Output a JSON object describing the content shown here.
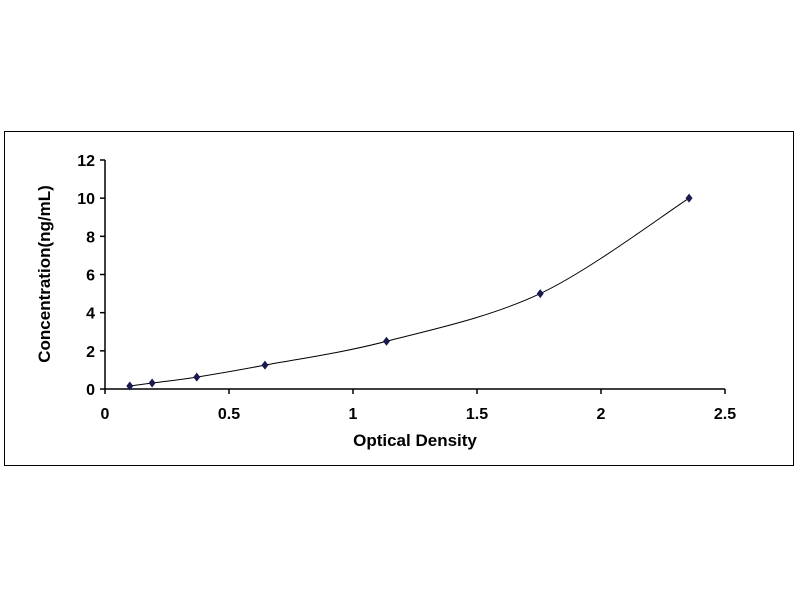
{
  "chart_data": {
    "type": "scatter",
    "title": "",
    "xlabel": "Optical Density",
    "ylabel": "Concentration(ng/mL)",
    "xlim": [
      0,
      2.5
    ],
    "ylim": [
      0,
      12
    ],
    "xticks": [
      "0",
      "0.5",
      "1",
      "1.5",
      "2",
      "2.5"
    ],
    "yticks": [
      "0",
      "2",
      "4",
      "6",
      "8",
      "10",
      "12"
    ],
    "grid": false,
    "legend": "none",
    "series": [
      {
        "x": [
          0.1,
          0.19,
          0.37,
          0.645,
          1.135,
          1.755,
          2.355
        ],
        "y": [
          0.156,
          0.312,
          0.625,
          1.25,
          2.5,
          5,
          10
        ],
        "marker": "diamond",
        "fit_line": true,
        "color": "#1a1a4e"
      }
    ]
  }
}
